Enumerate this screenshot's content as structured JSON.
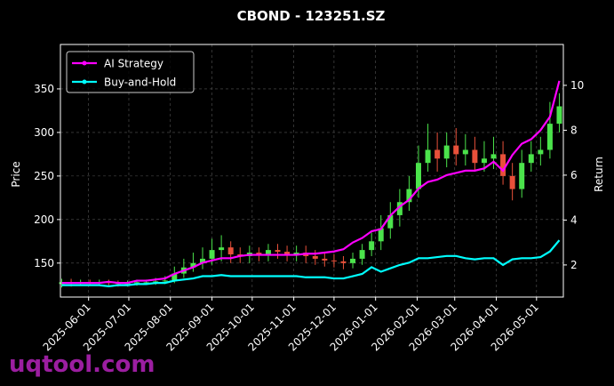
{
  "chart_data": {
    "type": "candlestick",
    "title": "CBOND - 123251.SZ",
    "ylabel": "Price",
    "y2label": "Return",
    "watermark": "uqtool.com",
    "x": [
      "2025-05-12",
      "2025-05-19",
      "2025-05-26",
      "2025-06-02",
      "2025-06-09",
      "2025-06-16",
      "2025-06-23",
      "2025-06-30",
      "2025-07-07",
      "2025-07-14",
      "2025-07-21",
      "2025-07-28",
      "2025-08-04",
      "2025-08-11",
      "2025-08-18",
      "2025-08-25",
      "2025-09-01",
      "2025-09-08",
      "2025-09-15",
      "2025-09-22",
      "2025-09-29",
      "2025-10-06",
      "2025-10-13",
      "2025-10-20",
      "2025-10-27",
      "2025-11-03",
      "2025-11-10",
      "2025-11-17",
      "2025-11-24",
      "2025-12-01",
      "2025-12-08",
      "2025-12-15",
      "2025-12-22",
      "2025-12-29",
      "2026-01-05",
      "2026-01-12",
      "2026-01-19",
      "2026-01-26",
      "2026-02-02",
      "2026-02-09",
      "2026-02-16",
      "2026-02-23",
      "2026-03-02",
      "2026-03-09",
      "2026-03-16",
      "2026-03-23",
      "2026-03-30",
      "2026-04-06",
      "2026-04-13",
      "2026-04-20",
      "2026-04-27",
      "2026-05-04",
      "2026-05-11",
      "2026-05-18"
    ],
    "open": [
      126,
      128,
      127,
      128,
      127,
      128,
      127,
      126,
      127,
      128,
      128,
      129,
      130,
      138,
      145,
      150,
      155,
      165,
      168,
      160,
      158,
      162,
      160,
      165,
      163,
      160,
      162,
      158,
      155,
      153,
      152,
      150,
      155,
      165,
      175,
      190,
      205,
      220,
      235,
      265,
      280,
      270,
      285,
      275,
      280,
      265,
      270,
      275,
      250,
      235,
      265,
      275,
      280,
      310
    ],
    "high": [
      132,
      132,
      131,
      131,
      131,
      131,
      130,
      130,
      131,
      131,
      133,
      135,
      146,
      155,
      162,
      168,
      178,
      182,
      175,
      168,
      170,
      168,
      172,
      172,
      170,
      170,
      170,
      165,
      162,
      160,
      158,
      162,
      172,
      185,
      205,
      220,
      235,
      250,
      285,
      310,
      300,
      300,
      305,
      298,
      295,
      290,
      295,
      290,
      265,
      280,
      290,
      295,
      335,
      345
    ],
    "low": [
      122,
      123,
      124,
      124,
      124,
      124,
      123,
      123,
      124,
      125,
      125,
      126,
      127,
      133,
      140,
      143,
      148,
      152,
      150,
      150,
      150,
      152,
      152,
      155,
      152,
      152,
      150,
      148,
      146,
      145,
      143,
      144,
      148,
      158,
      165,
      178,
      192,
      210,
      225,
      255,
      255,
      260,
      262,
      262,
      255,
      255,
      258,
      240,
      222,
      225,
      255,
      262,
      270,
      300
    ],
    "close": [
      128,
      127,
      128,
      127,
      128,
      127,
      126,
      127,
      128,
      128,
      129,
      130,
      138,
      145,
      150,
      155,
      165,
      168,
      160,
      158,
      162,
      160,
      165,
      163,
      160,
      162,
      158,
      155,
      153,
      152,
      150,
      155,
      165,
      175,
      190,
      205,
      220,
      235,
      265,
      280,
      270,
      285,
      275,
      280,
      265,
      270,
      275,
      250,
      235,
      265,
      275,
      280,
      310,
      330
    ],
    "up_color": "#4be34b",
    "down_color": "#e8503a",
    "series": [
      {
        "name": "AI Strategy",
        "color": "#ff00ff",
        "axis": "y2",
        "values": [
          1.2,
          1.2,
          1.2,
          1.2,
          1.2,
          1.25,
          1.2,
          1.2,
          1.3,
          1.3,
          1.35,
          1.4,
          1.6,
          1.75,
          1.9,
          2.1,
          2.2,
          2.3,
          2.3,
          2.4,
          2.45,
          2.45,
          2.45,
          2.45,
          2.45,
          2.45,
          2.5,
          2.5,
          2.55,
          2.6,
          2.7,
          3.0,
          3.2,
          3.5,
          3.6,
          4.2,
          4.6,
          4.9,
          5.4,
          5.7,
          5.8,
          6.0,
          6.1,
          6.2,
          6.2,
          6.3,
          6.6,
          6.2,
          6.9,
          7.4,
          7.6,
          8.0,
          8.6,
          10.2
        ]
      },
      {
        "name": "Buy-and-Hold",
        "color": "#00ffff",
        "axis": "y2",
        "values": [
          1.1,
          1.1,
          1.1,
          1.1,
          1.1,
          1.05,
          1.1,
          1.1,
          1.15,
          1.15,
          1.2,
          1.2,
          1.3,
          1.35,
          1.4,
          1.5,
          1.5,
          1.55,
          1.5,
          1.5,
          1.5,
          1.5,
          1.5,
          1.5,
          1.5,
          1.5,
          1.45,
          1.45,
          1.45,
          1.4,
          1.4,
          1.5,
          1.6,
          1.9,
          1.7,
          1.85,
          2.0,
          2.1,
          2.3,
          2.3,
          2.35,
          2.4,
          2.4,
          2.3,
          2.25,
          2.3,
          2.3,
          2.0,
          2.25,
          2.3,
          2.3,
          2.35,
          2.6,
          3.1
        ]
      }
    ],
    "xlim": [
      "2025-05-11",
      "2026-05-21"
    ],
    "xticks": [
      "2025-06-01",
      "2025-07-01",
      "2025-08-01",
      "2025-09-01",
      "2025-10-01",
      "2025-11-01",
      "2025-12-01",
      "2026-01-01",
      "2026-02-01",
      "2026-03-01",
      "2026-04-01",
      "2026-05-01"
    ],
    "ylim": [
      111,
      401
    ],
    "yticks": [
      150,
      200,
      250,
      300,
      350
    ],
    "y2lim": [
      0.57,
      11.82
    ],
    "y2ticks": [
      2,
      4,
      6,
      8,
      10
    ],
    "grid": true,
    "legend": "upper-left"
  }
}
